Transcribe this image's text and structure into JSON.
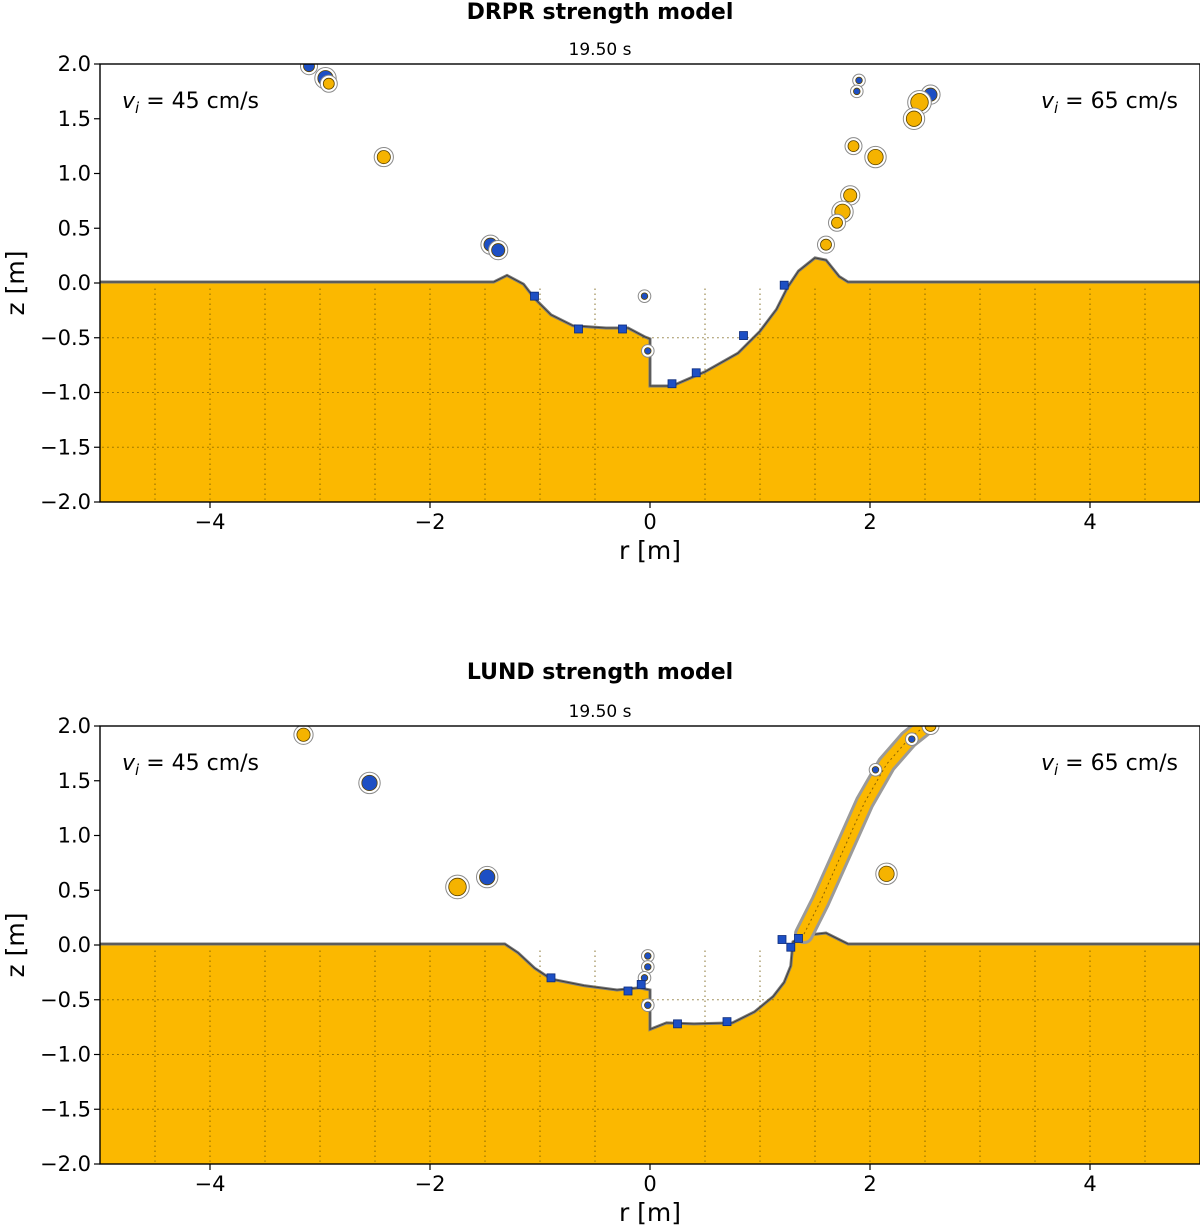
{
  "chart_data": [
    {
      "type": "cross-section",
      "title": "DRPR strength model",
      "subtitle": "19.50 s",
      "xlabel": "r [m]",
      "ylabel": "z [m]",
      "xlim": [
        -5,
        5
      ],
      "ylim": [
        -2,
        2
      ],
      "xticks": [
        -4,
        -2,
        0,
        2,
        4
      ],
      "xtick_labels": [
        "−4",
        "−2",
        "0",
        "2",
        "4"
      ],
      "yticks": [
        2.0,
        1.5,
        1.0,
        0.5,
        0.0,
        -0.5,
        -1.0,
        -1.5,
        -2.0
      ],
      "ytick_labels": [
        "2.0",
        "1.5",
        "1.0",
        "0.5",
        "0.0",
        "−0.5",
        "−1.0",
        "−1.5",
        "−2.0"
      ],
      "annotation_left": {
        "sym": "v",
        "sub": "i",
        "rest": " = 45 cm/s"
      },
      "annotation_right": {
        "sym": "v",
        "sub": "i",
        "rest": " = 65 cm/s"
      },
      "surface_z": 0.0,
      "crater_profile": [
        [
          -5,
          0
        ],
        [
          -1.42,
          0
        ],
        [
          -1.3,
          0.06
        ],
        [
          -1.15,
          -0.02
        ],
        [
          -1.05,
          -0.15
        ],
        [
          -0.9,
          -0.3
        ],
        [
          -0.7,
          -0.4
        ],
        [
          -0.4,
          -0.42
        ],
        [
          -0.2,
          -0.42
        ],
        [
          -0.05,
          -0.5
        ],
        [
          0,
          -0.52
        ],
        [
          0,
          -0.95
        ],
        [
          0.2,
          -0.95
        ],
        [
          0.5,
          -0.82
        ],
        [
          0.8,
          -0.65
        ],
        [
          1.0,
          -0.45
        ],
        [
          1.15,
          -0.25
        ],
        [
          1.25,
          -0.05
        ],
        [
          1.35,
          0.1
        ],
        [
          1.5,
          0.22
        ],
        [
          1.6,
          0.2
        ],
        [
          1.72,
          0.05
        ],
        [
          1.8,
          0
        ],
        [
          5,
          0
        ]
      ],
      "ejecta": [
        {
          "r": -3.1,
          "z": 1.98,
          "rr": 0.05,
          "c": "#1d4fc4"
        },
        {
          "r": -2.95,
          "z": 1.87,
          "rr": 0.07,
          "c": "#1d4fc4"
        },
        {
          "r": -2.92,
          "z": 1.82,
          "rr": 0.05,
          "c": "#f5b300"
        },
        {
          "r": -2.42,
          "z": 1.15,
          "rr": 0.06,
          "c": "#f5b300"
        },
        {
          "r": -1.45,
          "z": 0.35,
          "rr": 0.06,
          "c": "#1d4fc4"
        },
        {
          "r": -1.38,
          "z": 0.3,
          "rr": 0.06,
          "c": "#1d4fc4"
        },
        {
          "r": -0.05,
          "z": -0.12,
          "rr": 0.03,
          "c": "#1d4fc4"
        },
        {
          "r": -0.02,
          "z": -0.62,
          "rr": 0.03,
          "c": "#1d4fc4"
        },
        {
          "r": 1.9,
          "z": 1.85,
          "rr": 0.03,
          "c": "#1d4fc4"
        },
        {
          "r": 1.88,
          "z": 1.75,
          "rr": 0.03,
          "c": "#1d4fc4"
        },
        {
          "r": 2.55,
          "z": 1.72,
          "rr": 0.06,
          "c": "#1d4fc4"
        },
        {
          "r": 2.45,
          "z": 1.65,
          "rr": 0.08,
          "c": "#f5b300"
        },
        {
          "r": 2.4,
          "z": 1.5,
          "rr": 0.07,
          "c": "#f5b300"
        },
        {
          "r": 1.85,
          "z": 1.25,
          "rr": 0.05,
          "c": "#f5b300"
        },
        {
          "r": 2.05,
          "z": 1.15,
          "rr": 0.07,
          "c": "#f5b300"
        },
        {
          "r": 1.82,
          "z": 0.8,
          "rr": 0.06,
          "c": "#f5b300"
        },
        {
          "r": 1.75,
          "z": 0.65,
          "rr": 0.07,
          "c": "#f5b300"
        },
        {
          "r": 1.7,
          "z": 0.55,
          "rr": 0.05,
          "c": "#f5b300"
        },
        {
          "r": 1.6,
          "z": 0.35,
          "rr": 0.05,
          "c": "#f5b300"
        }
      ],
      "surface_blue": [
        {
          "r": -1.05,
          "z": -0.12
        },
        {
          "r": -0.65,
          "z": -0.42
        },
        {
          "r": -0.25,
          "z": -0.42
        },
        {
          "r": 0.2,
          "z": -0.92
        },
        {
          "r": 0.42,
          "z": -0.82
        },
        {
          "r": 0.85,
          "z": -0.48
        },
        {
          "r": 1.22,
          "z": -0.02
        }
      ]
    },
    {
      "type": "cross-section",
      "title": "LUND strength model",
      "subtitle": "19.50 s",
      "xlabel": "r [m]",
      "ylabel": "z [m]",
      "xlim": [
        -5,
        5
      ],
      "ylim": [
        -2,
        2
      ],
      "xticks": [
        -4,
        -2,
        0,
        2,
        4
      ],
      "xtick_labels": [
        "−4",
        "−2",
        "0",
        "2",
        "4"
      ],
      "yticks": [
        2.0,
        1.5,
        1.0,
        0.5,
        0.0,
        -0.5,
        -1.0,
        -1.5,
        -2.0
      ],
      "ytick_labels": [
        "2.0",
        "1.5",
        "1.0",
        "0.5",
        "0.0",
        "−0.5",
        "−1.0",
        "−1.5",
        "−2.0"
      ],
      "annotation_left": {
        "sym": "v",
        "sub": "i",
        "rest": " = 45 cm/s"
      },
      "annotation_right": {
        "sym": "v",
        "sub": "i",
        "rest": " = 65 cm/s"
      },
      "surface_z": 0.0,
      "crater_profile": [
        [
          -5,
          0
        ],
        [
          -1.32,
          0
        ],
        [
          -1.2,
          -0.08
        ],
        [
          -1.05,
          -0.22
        ],
        [
          -0.9,
          -0.32
        ],
        [
          -0.6,
          -0.38
        ],
        [
          -0.3,
          -0.42
        ],
        [
          -0.1,
          -0.4
        ],
        [
          0,
          -0.42
        ],
        [
          0,
          -0.78
        ],
        [
          0.15,
          -0.72
        ],
        [
          0.4,
          -0.73
        ],
        [
          0.75,
          -0.72
        ],
        [
          0.95,
          -0.62
        ],
        [
          1.12,
          -0.48
        ],
        [
          1.22,
          -0.35
        ],
        [
          1.28,
          -0.2
        ],
        [
          1.3,
          0.02
        ],
        [
          1.42,
          0.08
        ],
        [
          1.6,
          0.1
        ],
        [
          1.72,
          0.04
        ],
        [
          1.8,
          0
        ],
        [
          5,
          0
        ]
      ],
      "ejecta": [
        {
          "r": -3.15,
          "z": 1.92,
          "rr": 0.06,
          "c": "#f5b300"
        },
        {
          "r": -2.55,
          "z": 1.48,
          "rr": 0.07,
          "c": "#1d4fc4"
        },
        {
          "r": -1.75,
          "z": 0.53,
          "rr": 0.08,
          "c": "#f5b300"
        },
        {
          "r": -1.48,
          "z": 0.62,
          "rr": 0.07,
          "c": "#1d4fc4"
        },
        {
          "r": -0.02,
          "z": -0.1,
          "rr": 0.03,
          "c": "#1d4fc4"
        },
        {
          "r": -0.02,
          "z": -0.2,
          "rr": 0.03,
          "c": "#1d4fc4"
        },
        {
          "r": -0.05,
          "z": -0.3,
          "rr": 0.03,
          "c": "#1d4fc4"
        },
        {
          "r": -0.02,
          "z": -0.55,
          "rr": 0.03,
          "c": "#1d4fc4"
        },
        {
          "r": 2.15,
          "z": 0.65,
          "rr": 0.07,
          "c": "#f5b300"
        },
        {
          "r": 2.55,
          "z": 2.0,
          "rr": 0.05,
          "c": "#f5b300"
        },
        {
          "r": 2.38,
          "z": 1.88,
          "rr": 0.03,
          "c": "#1d4fc4"
        },
        {
          "r": 2.05,
          "z": 1.6,
          "rr": 0.03,
          "c": "#1d4fc4"
        }
      ],
      "ejecta_curtain": [
        [
          1.4,
          0.1
        ],
        [
          1.55,
          0.4
        ],
        [
          1.75,
          0.85
        ],
        [
          1.95,
          1.3
        ],
        [
          2.15,
          1.65
        ],
        [
          2.35,
          1.88
        ],
        [
          2.5,
          2.0
        ]
      ],
      "surface_blue": [
        {
          "r": -0.9,
          "z": -0.3
        },
        {
          "r": -0.2,
          "z": -0.42
        },
        {
          "r": -0.08,
          "z": -0.36
        },
        {
          "r": 0.25,
          "z": -0.72
        },
        {
          "r": 0.7,
          "z": -0.7
        },
        {
          "r": 1.28,
          "z": -0.02
        },
        {
          "r": 1.2,
          "z": 0.05
        },
        {
          "r": 1.35,
          "z": 0.06
        }
      ]
    }
  ]
}
